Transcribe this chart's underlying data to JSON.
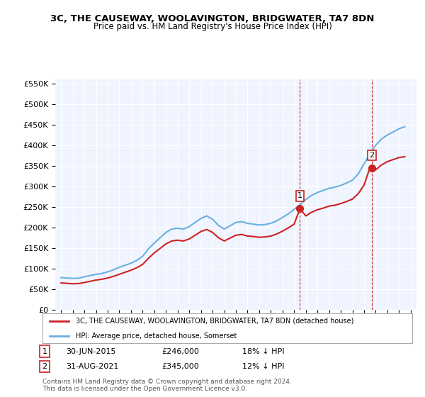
{
  "title": "3C, THE CAUSEWAY, WOOLAVINGTON, BRIDGWATER, TA7 8DN",
  "subtitle": "Price paid vs. HM Land Registry's House Price Index (HPI)",
  "ylim": [
    0,
    560000
  ],
  "yticks": [
    0,
    50000,
    100000,
    150000,
    200000,
    250000,
    300000,
    350000,
    400000,
    450000,
    500000,
    550000
  ],
  "legend_line1": "3C, THE CAUSEWAY, WOOLAVINGTON, BRIDGWATER, TA7 8DN (detached house)",
  "legend_line2": "HPI: Average price, detached house, Somerset",
  "sale1_label": "1",
  "sale1_date": "30-JUN-2015",
  "sale1_price": "£246,000",
  "sale1_hpi": "18% ↓ HPI",
  "sale2_label": "2",
  "sale2_date": "31-AUG-2021",
  "sale2_price": "£345,000",
  "sale2_hpi": "12% ↓ HPI",
  "footnote": "Contains HM Land Registry data © Crown copyright and database right 2024.\nThis data is licensed under the Open Government Licence v3.0.",
  "hpi_color": "#6ab0e0",
  "price_color": "#cc2222",
  "sale1_x": 2015.5,
  "sale2_x": 2021.67,
  "background_color": "#f0f4ff",
  "hpi_data": [
    [
      1995,
      78000
    ],
    [
      1995.5,
      77000
    ],
    [
      1996,
      76000
    ],
    [
      1996.5,
      76500
    ],
    [
      1997,
      80000
    ],
    [
      1997.5,
      83000
    ],
    [
      1998,
      86000
    ],
    [
      1998.5,
      88000
    ],
    [
      1999,
      92000
    ],
    [
      1999.5,
      97000
    ],
    [
      2000,
      103000
    ],
    [
      2000.5,
      108000
    ],
    [
      2001,
      113000
    ],
    [
      2001.5,
      120000
    ],
    [
      2002,
      130000
    ],
    [
      2002.5,
      148000
    ],
    [
      2003,
      162000
    ],
    [
      2003.5,
      175000
    ],
    [
      2004,
      188000
    ],
    [
      2004.5,
      196000
    ],
    [
      2005,
      198000
    ],
    [
      2005.5,
      196000
    ],
    [
      2006,
      202000
    ],
    [
      2006.5,
      212000
    ],
    [
      2007,
      222000
    ],
    [
      2007.5,
      228000
    ],
    [
      2008,
      220000
    ],
    [
      2008.5,
      205000
    ],
    [
      2009,
      196000
    ],
    [
      2009.5,
      204000
    ],
    [
      2010,
      212000
    ],
    [
      2010.5,
      214000
    ],
    [
      2011,
      210000
    ],
    [
      2011.5,
      208000
    ],
    [
      2012,
      206000
    ],
    [
      2012.5,
      207000
    ],
    [
      2013,
      210000
    ],
    [
      2013.5,
      216000
    ],
    [
      2014,
      224000
    ],
    [
      2014.5,
      233000
    ],
    [
      2015,
      244000
    ],
    [
      2015.5,
      255000
    ],
    [
      2016,
      268000
    ],
    [
      2016.5,
      278000
    ],
    [
      2017,
      285000
    ],
    [
      2017.5,
      290000
    ],
    [
      2018,
      295000
    ],
    [
      2018.5,
      298000
    ],
    [
      2019,
      302000
    ],
    [
      2019.5,
      308000
    ],
    [
      2020,
      315000
    ],
    [
      2020.5,
      330000
    ],
    [
      2021,
      355000
    ],
    [
      2021.5,
      378000
    ],
    [
      2022,
      400000
    ],
    [
      2022.5,
      415000
    ],
    [
      2023,
      425000
    ],
    [
      2023.5,
      432000
    ],
    [
      2024,
      440000
    ],
    [
      2024.5,
      445000
    ]
  ],
  "price_data": [
    [
      1995,
      65000
    ],
    [
      1995.5,
      64000
    ],
    [
      1996,
      63000
    ],
    [
      1996.5,
      63500
    ],
    [
      1997,
      66000
    ],
    [
      1997.5,
      69000
    ],
    [
      1998,
      72000
    ],
    [
      1998.5,
      74000
    ],
    [
      1999,
      77000
    ],
    [
      1999.5,
      81000
    ],
    [
      2000,
      86000
    ],
    [
      2000.5,
      91000
    ],
    [
      2001,
      96000
    ],
    [
      2001.5,
      102000
    ],
    [
      2002,
      110000
    ],
    [
      2002.5,
      125000
    ],
    [
      2003,
      138000
    ],
    [
      2003.5,
      149000
    ],
    [
      2004,
      160000
    ],
    [
      2004.5,
      167000
    ],
    [
      2005,
      169000
    ],
    [
      2005.5,
      167000
    ],
    [
      2006,
      172000
    ],
    [
      2006.5,
      181000
    ],
    [
      2007,
      190000
    ],
    [
      2007.5,
      195000
    ],
    [
      2008,
      188000
    ],
    [
      2008.5,
      175000
    ],
    [
      2009,
      167000
    ],
    [
      2009.5,
      174000
    ],
    [
      2010,
      181000
    ],
    [
      2010.5,
      183000
    ],
    [
      2011,
      179000
    ],
    [
      2011.5,
      178000
    ],
    [
      2012,
      176000
    ],
    [
      2012.5,
      177000
    ],
    [
      2013,
      179000
    ],
    [
      2013.5,
      184000
    ],
    [
      2014,
      191000
    ],
    [
      2014.5,
      199000
    ],
    [
      2015,
      208000
    ],
    [
      2015.5,
      246000
    ],
    [
      2016,
      228000
    ],
    [
      2016.5,
      237000
    ],
    [
      2017,
      243000
    ],
    [
      2017.5,
      247000
    ],
    [
      2018,
      252000
    ],
    [
      2018.5,
      254000
    ],
    [
      2019,
      258000
    ],
    [
      2019.5,
      263000
    ],
    [
      2020,
      269000
    ],
    [
      2020.5,
      282000
    ],
    [
      2021,
      303000
    ],
    [
      2021.5,
      345000
    ],
    [
      2022,
      340000
    ],
    [
      2022.5,
      352000
    ],
    [
      2023,
      360000
    ],
    [
      2023.5,
      365000
    ],
    [
      2024,
      370000
    ],
    [
      2024.5,
      372000
    ]
  ]
}
